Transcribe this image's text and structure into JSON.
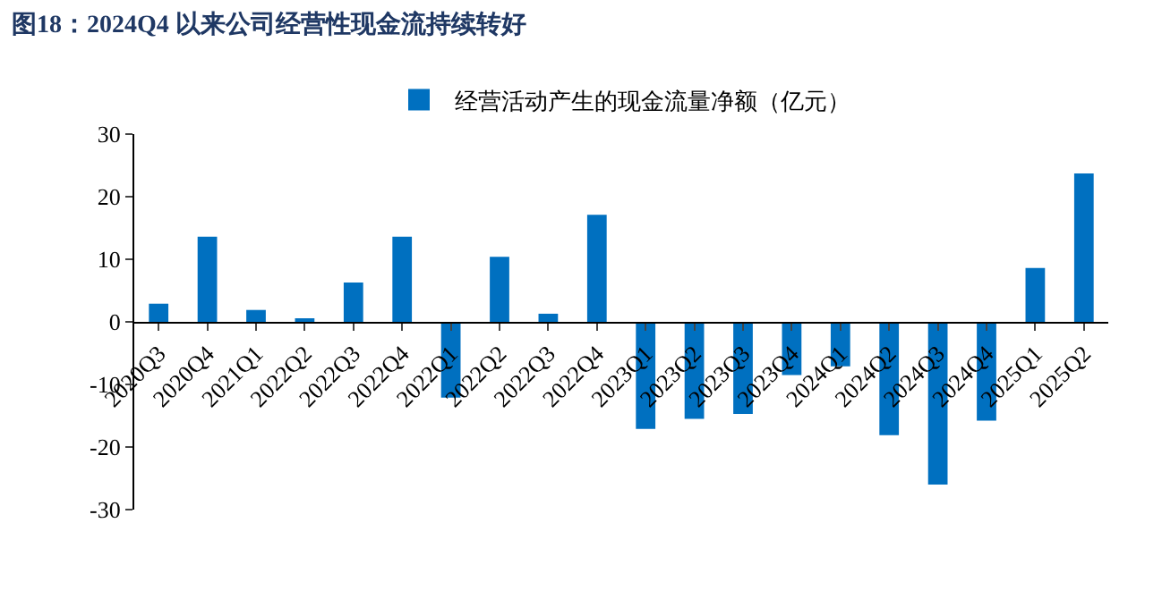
{
  "chart_data": {
    "type": "bar",
    "title": "图18：2024Q4 以来公司经营性现金流持续转好",
    "categories": [
      "2020Q3",
      "2020Q4",
      "2021Q1",
      "2022Q2",
      "2022Q3",
      "2022Q4",
      "2022Q1",
      "2022Q2",
      "2022Q3",
      "2022Q4",
      "2023Q1",
      "2023Q2",
      "2023Q3",
      "2023Q4",
      "2024Q1",
      "2024Q2",
      "2024Q3",
      "2024Q4",
      "2025Q1",
      "2025Q2"
    ],
    "series": [
      {
        "name": "经营活动产生的现金流量净额（亿元）",
        "color": "#0070c0",
        "values": [
          2.9,
          13.6,
          1.9,
          0.4,
          6.3,
          13.6,
          -12.1,
          10.4,
          1.3,
          17.1,
          -17.1,
          -15.5,
          -14.7,
          -8.5,
          -7.1,
          -18.1,
          -26.0,
          -15.8,
          8.6,
          23.7
        ]
      }
    ],
    "ylim": [
      -30,
      30
    ],
    "yticks": [
      -30,
      -20,
      -10,
      0,
      10,
      20,
      30
    ],
    "legend": "top"
  }
}
